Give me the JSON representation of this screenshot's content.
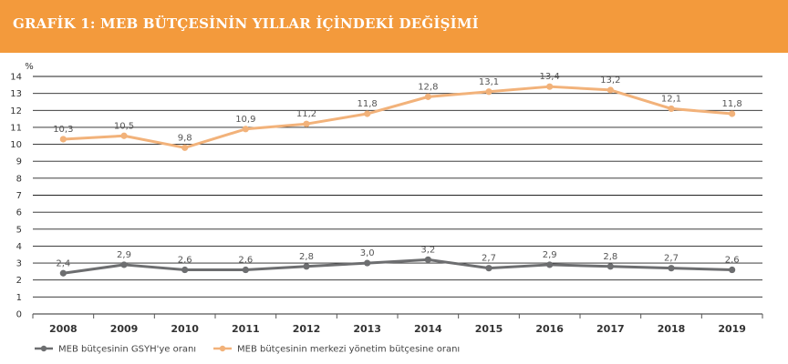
{
  "header": {
    "title": "GRAFİK 1: MEB BÜTÇESİNİN YILLAR İÇİNDEKİ DEĞİŞİMİ"
  },
  "colors": {
    "banner": "#f39a3c",
    "series_gdp": "#6d6e70",
    "series_budget": "#f2b27a"
  },
  "chart_data": {
    "type": "line",
    "ylabel": "%",
    "ylim": [
      0,
      14
    ],
    "yticks": [
      0,
      1,
      2,
      3,
      4,
      5,
      6,
      7,
      8,
      9,
      10,
      11,
      12,
      13,
      14
    ],
    "grid": true,
    "legend_position": "bottom-left",
    "categories": [
      "2008",
      "2009",
      "2010",
      "2011",
      "2012",
      "2013",
      "2014",
      "2015",
      "2016",
      "2017",
      "2018",
      "2019"
    ],
    "series": [
      {
        "name": "MEB bütçesinin GSYH'ye oranı",
        "color": "#6d6e70",
        "values": [
          2.4,
          2.9,
          2.6,
          2.6,
          2.8,
          3.0,
          3.2,
          2.7,
          2.9,
          2.8,
          2.7,
          2.6
        ],
        "labels": [
          "2,4",
          "2,9",
          "2,6",
          "2,6",
          "2,8",
          "3,0",
          "3,2",
          "2,7",
          "2,9",
          "2,8",
          "2,7",
          "2,6"
        ]
      },
      {
        "name": "MEB bütçesinin merkezi yönetim bütçesine oranı",
        "color": "#f2b27a",
        "values": [
          10.3,
          10.5,
          9.8,
          10.9,
          11.2,
          11.8,
          12.8,
          13.1,
          13.4,
          13.2,
          12.1,
          11.8
        ],
        "labels": [
          "10,3",
          "10,5",
          "9,8",
          "10,9",
          "11,2",
          "11,8",
          "12,8",
          "13,1",
          "13,4",
          "13,2",
          "12,1",
          "11,8"
        ]
      }
    ]
  }
}
